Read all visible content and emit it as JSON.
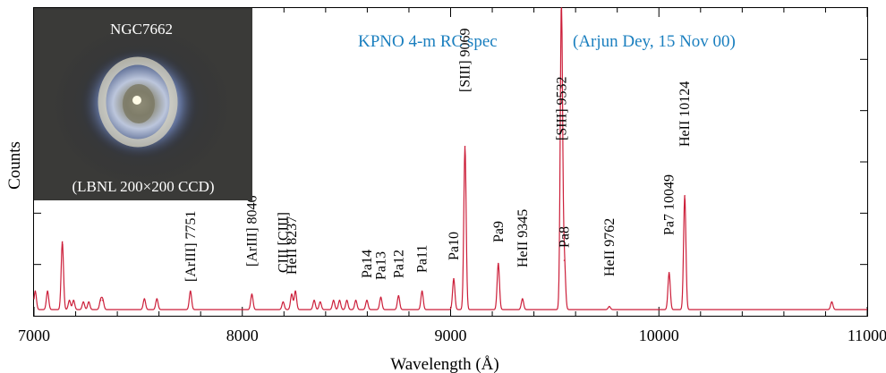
{
  "chart_data": {
    "type": "line",
    "title": "KPNO 4-m RC spec",
    "credit": "(Arjun Dey, 15 Nov 00)",
    "title_color": "#1a7fbf",
    "line_color": "#cc1f3a",
    "xlabel": "Wavelength (Å)",
    "ylabel": "Counts",
    "xlim": [
      7000,
      11000
    ],
    "ylim": [
      0,
      1
    ],
    "y_tick_labels_shown": false,
    "grid": false,
    "x_ticks": [
      {
        "value": 7000,
        "label": "7000"
      },
      {
        "value": 8000,
        "label": "8000"
      },
      {
        "value": 9000,
        "label": "9000"
      },
      {
        "value": 10000,
        "label": "10000"
      },
      {
        "value": 11000,
        "label": "11000"
      }
    ],
    "continuum": 0.02,
    "emission_lines": [
      {
        "x": 7006,
        "y": 0.06
      },
      {
        "x": 7065,
        "y": 0.06
      },
      {
        "x": 7136,
        "y": 0.22
      },
      {
        "x": 7170,
        "y": 0.03
      },
      {
        "x": 7190,
        "y": 0.03
      },
      {
        "x": 7237,
        "y": 0.025
      },
      {
        "x": 7263,
        "y": 0.025
      },
      {
        "x": 7320,
        "y": 0.03
      },
      {
        "x": 7330,
        "y": 0.03
      },
      {
        "x": 7530,
        "y": 0.035
      },
      {
        "x": 7590,
        "y": 0.035
      },
      {
        "x": 7751,
        "y": 0.06
      },
      {
        "x": 8046,
        "y": 0.05
      },
      {
        "x": 8196,
        "y": 0.025
      },
      {
        "x": 8237,
        "y": 0.05
      },
      {
        "x": 8255,
        "y": 0.06
      },
      {
        "x": 8345,
        "y": 0.03
      },
      {
        "x": 8374,
        "y": 0.025
      },
      {
        "x": 8438,
        "y": 0.03
      },
      {
        "x": 8467,
        "y": 0.03
      },
      {
        "x": 8502,
        "y": 0.03
      },
      {
        "x": 8545,
        "y": 0.03
      },
      {
        "x": 8598,
        "y": 0.03
      },
      {
        "x": 8665,
        "y": 0.04
      },
      {
        "x": 8750,
        "y": 0.045
      },
      {
        "x": 8863,
        "y": 0.06
      },
      {
        "x": 9015,
        "y": 0.1
      },
      {
        "x": 9069,
        "y": 0.53
      },
      {
        "x": 9229,
        "y": 0.15
      },
      {
        "x": 9345,
        "y": 0.035
      },
      {
        "x": 9532,
        "y": 1.0
      },
      {
        "x": 9546,
        "y": 0.16
      },
      {
        "x": 9762,
        "y": 0.01
      },
      {
        "x": 10049,
        "y": 0.12
      },
      {
        "x": 10124,
        "y": 0.37
      },
      {
        "x": 10830,
        "y": 0.025
      }
    ],
    "line_labels": [
      {
        "x": 7751,
        "text": "[ArIII] 7751"
      },
      {
        "x": 8046,
        "text": "[ArIII] 8046"
      },
      {
        "x": 8196,
        "text": "CIII [CIII]"
      },
      {
        "x": 8237,
        "text": "HeII 8237"
      },
      {
        "x": 8598,
        "text": "Pa14"
      },
      {
        "x": 8665,
        "text": "Pa13"
      },
      {
        "x": 8750,
        "text": "Pa12"
      },
      {
        "x": 8863,
        "text": "Pa11"
      },
      {
        "x": 9015,
        "text": "Pa10"
      },
      {
        "x": 9069,
        "text": "[SIII] 9069"
      },
      {
        "x": 9229,
        "text": "Pa9"
      },
      {
        "x": 9345,
        "text": "HeII 9345"
      },
      {
        "x": 9532,
        "text": "[SIII] 9532"
      },
      {
        "x": 9546,
        "text": "Pa8"
      },
      {
        "x": 9762,
        "text": "HeII 9762"
      },
      {
        "x": 10049,
        "text": "Pa7 10049"
      },
      {
        "x": 10124,
        "text": "HeII 10124"
      }
    ]
  },
  "inset": {
    "object_name": "NGC7662",
    "caption": "(LBNL 200×200 CCD)"
  }
}
